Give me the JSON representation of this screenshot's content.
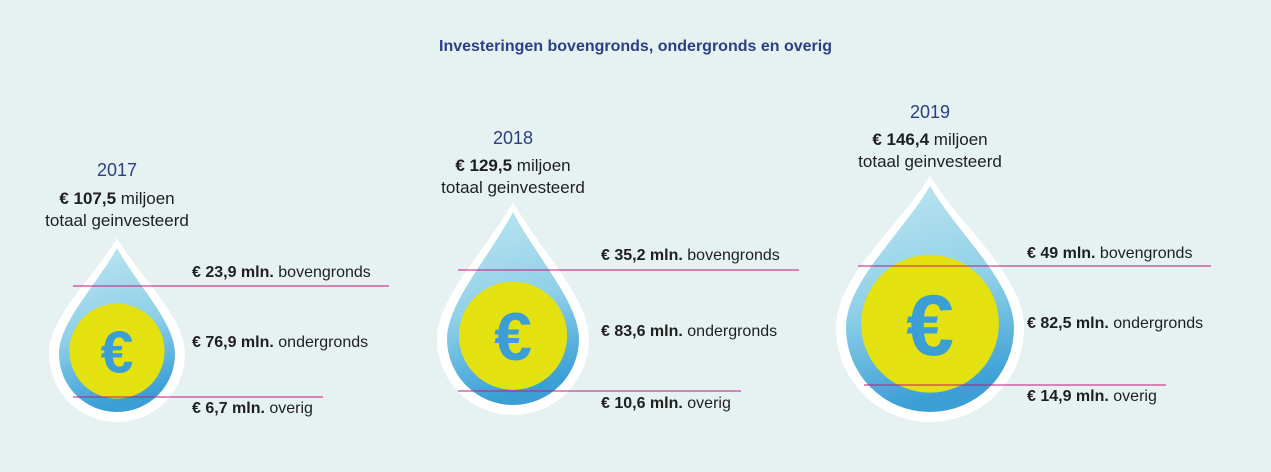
{
  "chart_data": {
    "type": "infographic",
    "title": "Investeringen bovengronds, ondergronds en overig",
    "currency_symbol": "€",
    "total_unit": "miljoen",
    "total_caption": "totaal geinvesteerd",
    "groups": [
      {
        "year": "2017",
        "total_value": "€ 107,5",
        "segments": [
          {
            "amount": "€ 23,9 mln.",
            "category": "bovengronds",
            "value": 23.9
          },
          {
            "amount": "€ 76,9 mln.",
            "category": "ondergronds",
            "value": 76.9
          },
          {
            "amount": "€ 6,7 mln.",
            "category": "overig",
            "value": 6.7
          }
        ]
      },
      {
        "year": "2018",
        "total_value": "€ 129,5",
        "segments": [
          {
            "amount": "€ 35,2 mln.",
            "category": "bovengronds",
            "value": 35.2
          },
          {
            "amount": "€ 83,6 mln.",
            "category": "ondergronds",
            "value": 83.6
          },
          {
            "amount": "€ 10,6 mln.",
            "category": "overig",
            "value": 10.6
          }
        ]
      },
      {
        "year": "2019",
        "total_value": "€ 146,4",
        "segments": [
          {
            "amount": "€ 49 mln.",
            "category": "bovengronds",
            "value": 49
          },
          {
            "amount": "€ 82,5 mln.",
            "category": "ondergronds",
            "value": 82.5
          },
          {
            "amount": "€ 14,9 mln.",
            "category": "overig",
            "value": 14.9
          }
        ]
      }
    ]
  },
  "colors": {
    "background": "#e6f1f2",
    "title": "#2b3f86",
    "year": "#2b3f86",
    "drop_light": "#bfe6f0",
    "drop_dark": "#3b9fd6",
    "coin": "#e3e10f",
    "euro_symbol": "#3b9fd6",
    "divider_line": "#c2187a"
  }
}
